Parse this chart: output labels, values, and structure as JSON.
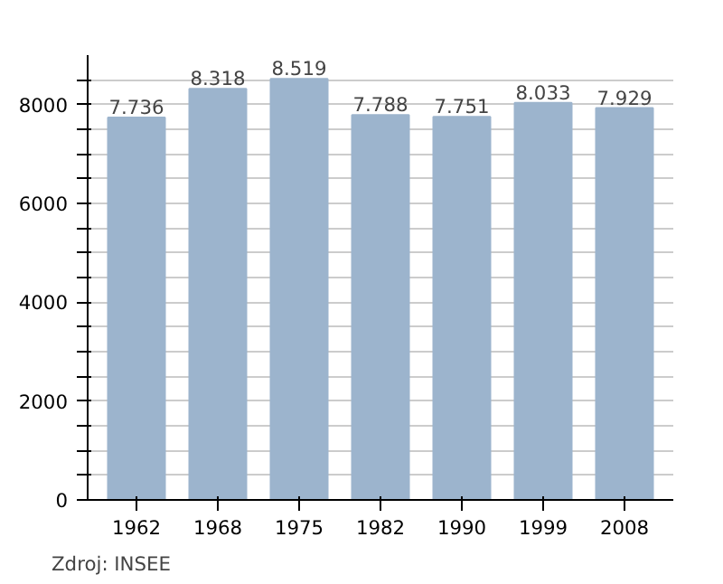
{
  "chart_data": {
    "type": "bar",
    "categories": [
      "1962",
      "1968",
      "1975",
      "1982",
      "1990",
      "1999",
      "2008"
    ],
    "values": [
      7736,
      8318,
      8519,
      7788,
      7751,
      8033,
      7929
    ],
    "value_labels": [
      "7.736",
      "8.318",
      "8.519",
      "7.788",
      "7.751",
      "8.033",
      "7.929"
    ],
    "color": "#9cb4cd",
    "ylim": [
      0,
      9000
    ],
    "yticks": [
      0,
      {
        "value": 500,
        "label": null
      },
      {
        "value": 1000,
        "label": null
      },
      {
        "value": 1500,
        "label": null
      },
      2000,
      {
        "value": 2500,
        "label": null
      },
      {
        "value": 3000,
        "label": null
      },
      {
        "value": 3500,
        "label": null
      },
      4000,
      {
        "value": 4500,
        "label": null
      },
      {
        "value": 5000,
        "label": null
      },
      {
        "value": 5500,
        "label": null
      },
      6000,
      {
        "value": 6500,
        "label": null
      },
      {
        "value": 7000,
        "label": null
      },
      {
        "value": 7500,
        "label": null
      },
      8000,
      {
        "value": 8500,
        "label": null
      }
    ],
    "grid": "y",
    "annotations": [
      "Zdroj: INSEE"
    ]
  }
}
